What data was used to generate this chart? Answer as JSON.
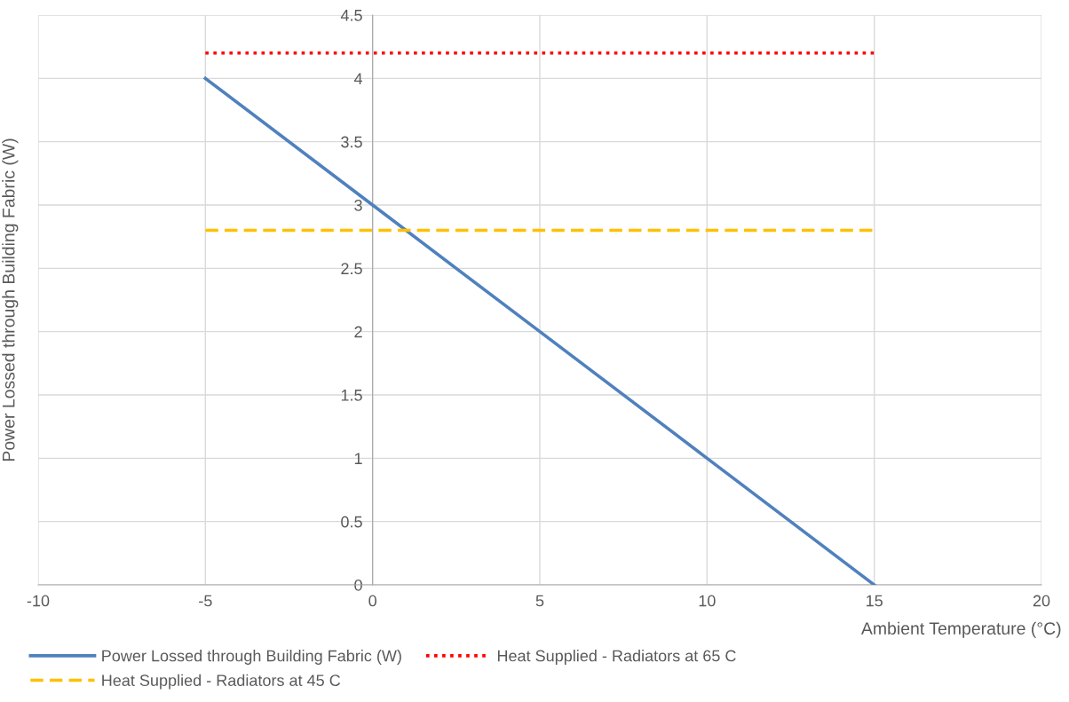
{
  "chart_data": {
    "type": "line",
    "xlabel": "Ambient Temperature (°C)",
    "ylabel": "Power Lossed through Building Fabric (W)",
    "xlim": [
      -10,
      20
    ],
    "xticks": [
      -10,
      -5,
      0,
      5,
      10,
      15,
      20
    ],
    "ylim": [
      0,
      4.5
    ],
    "yticks": [
      0,
      0.5,
      1,
      1.5,
      2,
      2.5,
      3,
      3.5,
      4,
      4.5
    ],
    "grid": true,
    "legend": "bottom",
    "marker": "none",
    "series": [
      {
        "name": "Power Lossed through Building Fabric (W)",
        "color": "#4f81bd",
        "x": [
          -5,
          0,
          5,
          10,
          15
        ],
        "values": [
          4,
          3,
          2,
          1,
          0
        ],
        "line_style": "solid"
      },
      {
        "name": "Heat Supplied - Radiators at 65 C",
        "color": "#ff0000",
        "x": [
          -5,
          0,
          5,
          10,
          15
        ],
        "values": [
          4.2,
          4.2,
          4.2,
          4.2,
          4.2
        ],
        "line_style": "dotted"
      },
      {
        "name": "Heat Supplied - Radiators at 45 C",
        "color": "#ffc000",
        "x": [
          -5,
          0,
          5,
          10,
          15
        ],
        "values": [
          2.8,
          2.8,
          2.8,
          2.8,
          2.8
        ],
        "line_style": "dashed"
      }
    ]
  }
}
